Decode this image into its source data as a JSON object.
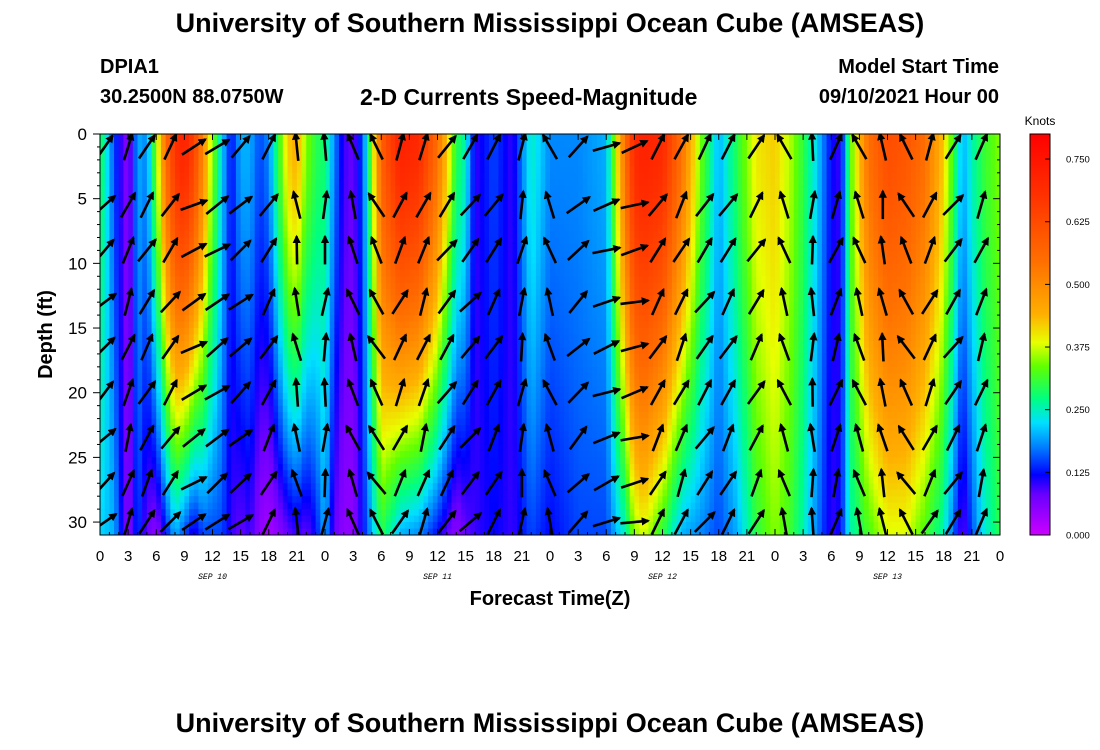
{
  "header": {
    "title": "University of Southern Mississippi Ocean Cube (AMSEAS)",
    "station_id": "DPIA1",
    "coordinates": "30.2500N  88.0750W",
    "subtitle": "2-D Currents Speed-Magnitude",
    "model_start_label": "Model Start Time",
    "model_start_value": "09/10/2021 Hour 00"
  },
  "footer": {
    "title": "University of Southern Mississippi Ocean Cube (AMSEAS)"
  },
  "chart_data": {
    "type": "heatmap",
    "title": "2-D Currents Speed-Magnitude",
    "xlabel": "Forecast Time(Z)",
    "ylabel": "Depth (ft)",
    "x_range_hours": [
      0,
      96
    ],
    "y_range_ft": [
      0,
      31
    ],
    "x_tick_labels": [
      "0",
      "3",
      "6",
      "9",
      "12",
      "15",
      "18",
      "21",
      "0",
      "3",
      "6",
      "9",
      "12",
      "15",
      "18",
      "21",
      "0",
      "3",
      "6",
      "9",
      "12",
      "15",
      "18",
      "21",
      "0",
      "3",
      "6",
      "9",
      "12",
      "15",
      "18",
      "21",
      "0"
    ],
    "y_ticks": [
      0,
      5,
      10,
      15,
      20,
      25,
      30
    ],
    "day_labels": [
      {
        "text": "SEP 10",
        "hour": 12
      },
      {
        "text": "SEP 11",
        "hour": 36
      },
      {
        "text": "SEP 12",
        "hour": 60
      },
      {
        "text": "SEP 13",
        "hour": 84
      }
    ],
    "colorbar": {
      "title": "Knots",
      "min": 0,
      "max": 0.8,
      "tick_values": [
        0.0,
        0.125,
        0.25,
        0.375,
        0.5,
        0.625,
        0.75
      ],
      "tick_labels": [
        "0.000",
        "0.125",
        "0.250",
        "0.375",
        "0.500",
        "0.625",
        "0.750"
      ]
    },
    "speed_profile": {
      "hours": [
        0,
        1.5,
        3,
        4,
        5,
        6,
        7,
        8,
        9,
        10,
        11,
        12,
        13,
        14,
        15,
        16,
        17,
        18,
        19,
        20,
        21,
        22,
        23,
        24,
        25,
        26,
        27,
        28,
        29,
        30,
        32,
        34,
        36,
        38,
        39,
        40,
        42,
        44,
        46,
        48,
        51,
        54,
        56,
        57,
        58,
        60,
        62,
        64,
        66,
        68,
        70,
        72,
        74,
        76,
        78,
        79,
        80,
        82,
        84,
        86,
        88,
        90,
        92,
        94,
        96
      ],
      "surface_knots": [
        0.3,
        0.15,
        0.05,
        0.2,
        0.18,
        0.35,
        0.55,
        0.68,
        0.72,
        0.65,
        0.5,
        0.35,
        0.22,
        0.12,
        0.2,
        0.2,
        0.15,
        0.18,
        0.3,
        0.42,
        0.45,
        0.35,
        0.3,
        0.28,
        0.18,
        0.1,
        0.08,
        0.15,
        0.35,
        0.58,
        0.72,
        0.7,
        0.55,
        0.3,
        0.25,
        0.1,
        0.15,
        0.1,
        0.25,
        0.18,
        0.18,
        0.2,
        0.55,
        0.7,
        0.72,
        0.7,
        0.55,
        0.35,
        0.2,
        0.3,
        0.4,
        0.42,
        0.35,
        0.25,
        0.12,
        0.1,
        0.32,
        0.55,
        0.62,
        0.6,
        0.55,
        0.42,
        0.2,
        0.3,
        0.35
      ],
      "bottom_knots": [
        0.22,
        0.2,
        0.05,
        0.15,
        0.08,
        0.05,
        0.12,
        0.2,
        0.15,
        0.1,
        0.15,
        0.15,
        0.15,
        0.1,
        0.08,
        0.1,
        0.05,
        0.03,
        0.05,
        0.08,
        0.1,
        0.08,
        0.12,
        0.2,
        0.08,
        0.05,
        0.05,
        0.12,
        0.2,
        0.3,
        0.2,
        0.18,
        0.12,
        0.05,
        0.08,
        0.1,
        0.12,
        0.1,
        0.15,
        0.12,
        0.15,
        0.15,
        0.25,
        0.35,
        0.38,
        0.3,
        0.2,
        0.18,
        0.15,
        0.2,
        0.3,
        0.35,
        0.3,
        0.2,
        0.1,
        0.12,
        0.25,
        0.32,
        0.38,
        0.38,
        0.32,
        0.25,
        0.08,
        0.22,
        0.3
      ]
    },
    "vector_field": {
      "hours": [
        0.5,
        3,
        5,
        7.5,
        10,
        12.5,
        15,
        18,
        21,
        24,
        27,
        29.5,
        32,
        34.5,
        37,
        39.5,
        42,
        45,
        48,
        51,
        54,
        57,
        59.5,
        62,
        64.5,
        67,
        70,
        73,
        76,
        78.5,
        81,
        83.5,
        86,
        88.5,
        91,
        94
      ],
      "depths_ft": [
        1,
        5.5,
        9,
        13,
        16.5,
        20,
        23.5,
        27,
        30
      ],
      "direction_deg": [
        45,
        20,
        30,
        35,
        60,
        55,
        50,
        30,
        350,
        5,
        340,
        330,
        25,
        20,
        35,
        40,
        30,
        10,
        340,
        45,
        70,
        75,
        30,
        25,
        35,
        30,
        30,
        340,
        360,
        20,
        340,
        350,
        330,
        25,
        35,
        20
      ]
    }
  }
}
